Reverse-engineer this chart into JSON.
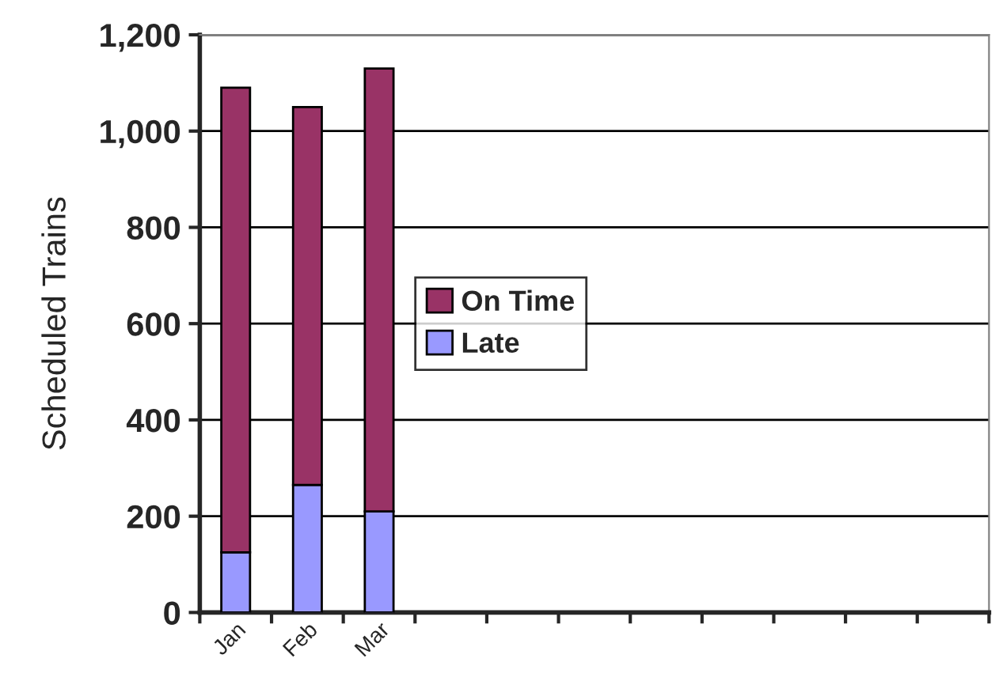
{
  "chart_data": {
    "type": "bar",
    "stacked": true,
    "ylabel": "Scheduled Trains",
    "categories": [
      "Jan",
      "Feb",
      "Mar",
      null,
      null,
      null,
      null,
      null,
      null,
      null,
      null
    ],
    "series": [
      {
        "name": "Late",
        "color": "#9999ff",
        "values": [
          125,
          265,
          210,
          null,
          null,
          null,
          null,
          null,
          null,
          null,
          null
        ]
      },
      {
        "name": "On Time",
        "color": "#993366",
        "values": [
          965,
          785,
          920,
          null,
          null,
          null,
          null,
          null,
          null,
          null,
          null
        ]
      }
    ],
    "ylim": [
      0,
      1200
    ],
    "yticks": [
      0,
      200,
      400,
      600,
      800,
      {
        "value": 1000,
        "label": "1,000"
      },
      {
        "value": 1200,
        "label": "1,200"
      }
    ],
    "grid": "y",
    "legend": "left"
  }
}
